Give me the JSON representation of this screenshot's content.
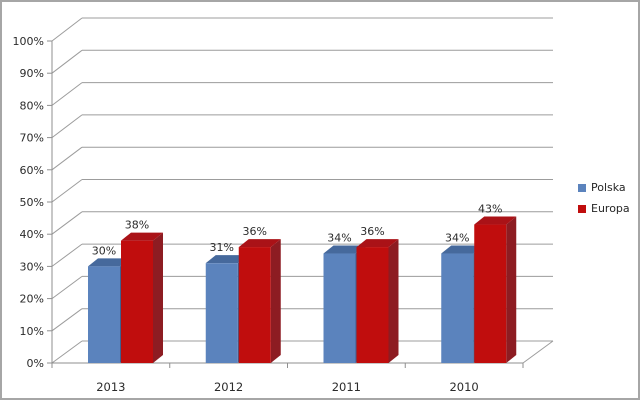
{
  "chart_data": {
    "type": "bar",
    "subtype": "3d-clustered-column",
    "title": "",
    "categories": [
      "2013",
      "2012",
      "2011",
      "2010"
    ],
    "series": [
      {
        "name": "Polska",
        "color": "#5b83bd",
        "color_top": "#46699c",
        "color_side": "#3f5f8f",
        "values": [
          30,
          31,
          34,
          34
        ],
        "labels": [
          "30%",
          "31%",
          "34%",
          "34%"
        ]
      },
      {
        "name": "Europa",
        "color": "#c00d0d",
        "color_top": "#aa1217",
        "color_side": "#8d1c22",
        "values": [
          38,
          36,
          36,
          43
        ],
        "labels": [
          "38%",
          "36%",
          "36%",
          "43%"
        ]
      }
    ],
    "ylim": [
      0,
      100
    ],
    "ytick_step": 10,
    "ytick_labels": [
      "0%",
      "10%",
      "20%",
      "30%",
      "40%",
      "50%",
      "60%",
      "70%",
      "80%",
      "90%",
      "100%"
    ],
    "value_suffix": "%",
    "grid": true,
    "legend_position": "right",
    "data_labels": true
  },
  "colors": {
    "background": "#ffffff",
    "frame_border": "#a6a6a6",
    "gridline": "#9c9c9c",
    "axis": "#8f8f8f",
    "text": "#2b2b2b"
  }
}
